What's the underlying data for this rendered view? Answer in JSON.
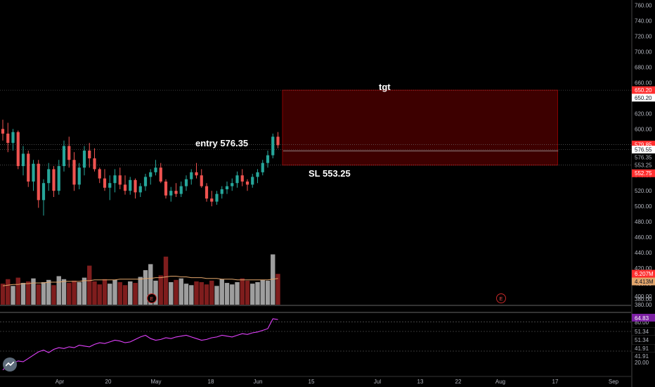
{
  "colors": {
    "background": "#000000",
    "up": "#26a69a",
    "down": "#ef5350",
    "vol_up": "#9e9e9e",
    "vol_down": "#7f1d1d",
    "vol_ma": "#e2a56b",
    "rsi": "#e040fb",
    "zone_fill": "#3d0000",
    "zone_border": "#8b0000",
    "red_tag": "#ff2e2e",
    "grid_line": "#555555"
  },
  "annotations": {
    "tgt": "tgt",
    "entry": "entry 576.35",
    "sl": "SL 553.25"
  },
  "price_axis": {
    "ticks": [
      "760.00",
      "740.00",
      "720.00",
      "700.00",
      "680.00",
      "660.00",
      "640.00",
      "620.00",
      "600.00",
      "580.00",
      "560.00",
      "540.00",
      "520.00",
      "500.00",
      "480.00",
      "460.00",
      "440.00",
      "420.00",
      "400.00",
      "380.00"
    ],
    "tags": [
      {
        "text": "650.20",
        "price": 650.2,
        "style": "red"
      },
      {
        "text": "650.20",
        "price": 640.5,
        "style": "white"
      },
      {
        "text": "579.85",
        "price": 579.85,
        "style": "red"
      },
      {
        "text": "576.55",
        "price": 573.3,
        "style": "white"
      },
      {
        "text": "576.35",
        "price": 563.2,
        "style": "plain"
      },
      {
        "text": "553.25",
        "price": 553.25,
        "style": "plain"
      },
      {
        "text": "552.75",
        "price": 542.7,
        "style": "red"
      }
    ]
  },
  "volume_axis": {
    "tags": [
      {
        "text": "6.207M",
        "style": "red"
      },
      {
        "text": "4.413M",
        "style": "orange"
      }
    ]
  },
  "rsi_axis": {
    "ticks": [
      "80.00",
      "51.34",
      "51.34",
      "41.91",
      "41.91",
      "20.00"
    ],
    "tags": [
      {
        "text": "64.83",
        "style": "purple"
      }
    ]
  },
  "time_axis": {
    "labels": [
      "Apr",
      "20",
      "May",
      "18",
      "Jun",
      "15",
      "Jul",
      "13",
      "22",
      "Aug",
      "17",
      "Sep"
    ]
  },
  "earnings_markers": [
    "E",
    "E"
  ],
  "zone": {
    "top": 650.2,
    "bottom": 553.25,
    "start_index": 55,
    "end_index": 109
  },
  "chart_data": {
    "type": "candlestick",
    "candles": [
      [
        600,
        612,
        585,
        594
      ],
      [
        594,
        608,
        570,
        582
      ],
      [
        582,
        600,
        572,
        596
      ],
      [
        596,
        598,
        548,
        552
      ],
      [
        552,
        578,
        540,
        568
      ],
      [
        568,
        572,
        525,
        532
      ],
      [
        532,
        560,
        520,
        555
      ],
      [
        555,
        560,
        498,
        508
      ],
      [
        508,
        535,
        488,
        530
      ],
      [
        530,
        556,
        520,
        548
      ],
      [
        548,
        552,
        512,
        520
      ],
      [
        520,
        560,
        515,
        552
      ],
      [
        552,
        585,
        545,
        578
      ],
      [
        578,
        590,
        550,
        560
      ],
      [
        560,
        570,
        520,
        528
      ],
      [
        528,
        556,
        522,
        550
      ],
      [
        550,
        578,
        540,
        572
      ],
      [
        572,
        582,
        550,
        562
      ],
      [
        562,
        575,
        545,
        548
      ],
      [
        548,
        550,
        530,
        536
      ],
      [
        536,
        548,
        520,
        524
      ],
      [
        524,
        540,
        508,
        530
      ],
      [
        530,
        548,
        518,
        540
      ],
      [
        540,
        550,
        522,
        528
      ],
      [
        528,
        540,
        515,
        520
      ],
      [
        520,
        538,
        515,
        534
      ],
      [
        534,
        536,
        510,
        518
      ],
      [
        518,
        530,
        512,
        526
      ],
      [
        526,
        542,
        520,
        538
      ],
      [
        538,
        548,
        528,
        544
      ],
      [
        544,
        560,
        540,
        550
      ],
      [
        550,
        556,
        530,
        532
      ],
      [
        532,
        535,
        510,
        514
      ],
      [
        514,
        525,
        506,
        520
      ],
      [
        520,
        530,
        512,
        516
      ],
      [
        516,
        532,
        512,
        526
      ],
      [
        526,
        540,
        520,
        535
      ],
      [
        535,
        548,
        528,
        544
      ],
      [
        544,
        556,
        536,
        540
      ],
      [
        540,
        548,
        524,
        526
      ],
      [
        526,
        530,
        506,
        510
      ],
      [
        510,
        520,
        500,
        506
      ],
      [
        506,
        520,
        502,
        516
      ],
      [
        516,
        526,
        510,
        522
      ],
      [
        522,
        532,
        516,
        526
      ],
      [
        526,
        536,
        520,
        530
      ],
      [
        530,
        545,
        524,
        540
      ],
      [
        540,
        548,
        526,
        532
      ],
      [
        532,
        535,
        520,
        528
      ],
      [
        528,
        542,
        524,
        538
      ],
      [
        538,
        548,
        530,
        544
      ],
      [
        544,
        560,
        540,
        556
      ],
      [
        556,
        572,
        550,
        566
      ],
      [
        566,
        594,
        562,
        590
      ],
      [
        590,
        596,
        575,
        579
      ]
    ],
    "volume": [
      2.8,
      3.4,
      2.5,
      3.6,
      2.9,
      3.1,
      3.5,
      2.7,
      3.0,
      3.3,
      2.6,
      3.8,
      3.4,
      2.9,
      3.2,
      3.0,
      3.6,
      5.2,
      3.1,
      2.7,
      3.4,
      2.8,
      3.3,
      3.0,
      2.6,
      3.1,
      2.9,
      3.7,
      4.6,
      5.4,
      3.2,
      3.9,
      6.4,
      3.0,
      3.3,
      3.5,
      2.8,
      2.6,
      3.1,
      3.0,
      2.7,
      3.2,
      2.5,
      3.4,
      2.9,
      2.7,
      3.0,
      3.5,
      3.2,
      2.8,
      3.0,
      3.3,
      3.2,
      6.7,
      4.1
    ],
    "volume_ma": [
      2.5,
      2.6,
      2.7,
      2.7,
      2.8,
      2.8,
      2.9,
      2.9,
      2.9,
      3.0,
      3.0,
      3.0,
      3.1,
      3.1,
      3.1,
      3.1,
      3.2,
      3.2,
      3.3,
      3.3,
      3.3,
      3.3,
      3.3,
      3.4,
      3.4,
      3.4,
      3.4,
      3.4,
      3.5,
      3.5,
      3.6,
      3.6,
      3.7,
      3.8,
      3.8,
      3.7,
      3.7,
      3.6,
      3.6,
      3.6,
      3.5,
      3.5,
      3.5,
      3.4,
      3.4,
      3.4,
      3.3,
      3.3,
      3.3,
      3.3,
      3.3,
      3.3,
      3.3,
      3.4,
      3.5
    ],
    "rsi": [
      22,
      28,
      30,
      33,
      32,
      36,
      40,
      44,
      46,
      43,
      47,
      49,
      48,
      50,
      49,
      52,
      51,
      50,
      53,
      55,
      54,
      56,
      58,
      57,
      55,
      56,
      59,
      62,
      64,
      60,
      58,
      59,
      61,
      60,
      62,
      63,
      64,
      62,
      60,
      58,
      59,
      61,
      62,
      64,
      63,
      62,
      64,
      66,
      65,
      67,
      68,
      70,
      72,
      84,
      83
    ],
    "price_range": [
      370,
      765
    ],
    "rsi_range": [
      15,
      90
    ],
    "volume_range": [
      0,
      7.5
    ]
  }
}
